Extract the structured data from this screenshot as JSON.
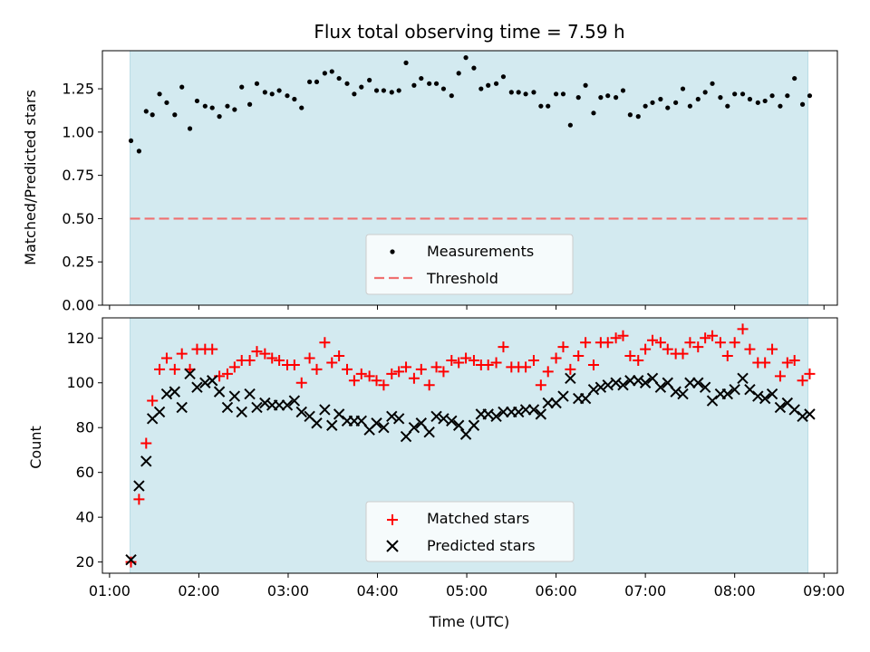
{
  "chart_data": [
    {
      "type": "scatter",
      "title": "Flux total observing time = 7.59 h",
      "ylabel": "Matched/Predicted stars",
      "xlabel": "",
      "xlim": [
        0.92,
        9.15
      ],
      "ylim": [
        0,
        1.47
      ],
      "yticks": [
        0,
        0.25,
        0.5,
        0.75,
        1.0,
        1.25
      ],
      "ytick_labels": [
        "0.00",
        "0.25",
        "0.50",
        "0.75",
        "1.00",
        "1.25"
      ],
      "observing_window": [
        1.23,
        8.82
      ],
      "threshold": 0.5,
      "legend": {
        "placement": "lower-center",
        "entries": [
          "Measurements",
          "Threshold"
        ]
      },
      "series": [
        {
          "name": "Measurements",
          "x": [
            1.24,
            1.33,
            1.41,
            1.48,
            1.56,
            1.64,
            1.73,
            1.81,
            1.9,
            1.98,
            2.07,
            2.15,
            2.23,
            2.32,
            2.4,
            2.48,
            2.57,
            2.65,
            2.74,
            2.82,
            2.9,
            2.99,
            3.07,
            3.15,
            3.24,
            3.32,
            3.41,
            3.49,
            3.57,
            3.66,
            3.74,
            3.82,
            3.91,
            3.99,
            4.07,
            4.16,
            4.24,
            4.32,
            4.41,
            4.49,
            4.58,
            4.66,
            4.74,
            4.83,
            4.91,
            4.99,
            5.08,
            5.16,
            5.24,
            5.33,
            5.41,
            5.5,
            5.58,
            5.66,
            5.75,
            5.83,
            5.91,
            6.0,
            6.08,
            6.16,
            6.25,
            6.33,
            6.42,
            6.5,
            6.58,
            6.67,
            6.75,
            6.83,
            6.92,
            7.0,
            7.08,
            7.17,
            7.25,
            7.34,
            7.42,
            7.5,
            7.59,
            7.67,
            7.75,
            7.84,
            7.92,
            8.0,
            8.09,
            8.17,
            8.26,
            8.34,
            8.42,
            8.51,
            8.59,
            8.67,
            8.76,
            8.84
          ],
          "y": [
            0.95,
            0.89,
            1.12,
            1.1,
            1.22,
            1.17,
            1.1,
            1.26,
            1.02,
            1.18,
            1.15,
            1.14,
            1.09,
            1.15,
            1.13,
            1.26,
            1.16,
            1.28,
            1.23,
            1.22,
            1.24,
            1.21,
            1.19,
            1.14,
            1.29,
            1.29,
            1.34,
            1.35,
            1.31,
            1.28,
            1.22,
            1.26,
            1.3,
            1.24,
            1.24,
            1.23,
            1.24,
            1.4,
            1.27,
            1.31,
            1.28,
            1.28,
            1.25,
            1.21,
            1.34,
            1.43,
            1.37,
            1.25,
            1.27,
            1.28,
            1.32,
            1.23,
            1.23,
            1.22,
            1.23,
            1.15,
            1.15,
            1.22,
            1.22,
            1.04,
            1.2,
            1.27,
            1.11,
            1.2,
            1.21,
            1.2,
            1.24,
            1.1,
            1.09,
            1.15,
            1.17,
            1.19,
            1.14,
            1.17,
            1.25,
            1.15,
            1.19,
            1.23,
            1.28,
            1.2,
            1.15,
            1.22,
            1.22,
            1.19,
            1.17,
            1.18,
            1.21,
            1.15,
            1.21,
            1.31,
            1.16,
            1.21
          ]
        }
      ]
    },
    {
      "type": "scatter",
      "title": "",
      "ylabel": "Count",
      "xlabel": "Time (UTC)",
      "xlim": [
        0.92,
        9.15
      ],
      "ylim": [
        15,
        129
      ],
      "yticks": [
        20,
        40,
        60,
        80,
        100,
        120
      ],
      "xticks": [
        1,
        2,
        3,
        4,
        5,
        6,
        7,
        8,
        9
      ],
      "xtick_labels": [
        "01:00",
        "02:00",
        "03:00",
        "04:00",
        "05:00",
        "06:00",
        "07:00",
        "08:00",
        "09:00"
      ],
      "observing_window": [
        1.23,
        8.82
      ],
      "legend": {
        "placement": "lower-center",
        "entries": [
          "Matched stars",
          "Predicted stars"
        ]
      },
      "series": [
        {
          "name": "Matched stars",
          "x": [
            1.24,
            1.33,
            1.41,
            1.48,
            1.56,
            1.64,
            1.73,
            1.81,
            1.9,
            1.98,
            2.07,
            2.15,
            2.23,
            2.32,
            2.4,
            2.48,
            2.57,
            2.65,
            2.74,
            2.82,
            2.9,
            2.99,
            3.07,
            3.15,
            3.24,
            3.32,
            3.41,
            3.49,
            3.57,
            3.66,
            3.74,
            3.82,
            3.91,
            3.99,
            4.07,
            4.16,
            4.24,
            4.32,
            4.41,
            4.49,
            4.58,
            4.66,
            4.74,
            4.83,
            4.91,
            4.99,
            5.08,
            5.16,
            5.24,
            5.33,
            5.41,
            5.5,
            5.58,
            5.66,
            5.75,
            5.83,
            5.91,
            6.0,
            6.08,
            6.16,
            6.25,
            6.33,
            6.42,
            6.5,
            6.58,
            6.67,
            6.75,
            6.83,
            6.92,
            7.0,
            7.08,
            7.17,
            7.25,
            7.34,
            7.42,
            7.5,
            7.59,
            7.67,
            7.75,
            7.84,
            7.92,
            8.0,
            8.09,
            8.17,
            8.26,
            8.34,
            8.42,
            8.51,
            8.59,
            8.67,
            8.76,
            8.84
          ],
          "y": [
            20,
            48,
            73,
            92,
            106,
            111,
            106,
            113,
            106,
            115,
            115,
            115,
            103,
            104,
            107,
            110,
            110,
            114,
            113,
            111,
            110,
            108,
            108,
            100,
            111,
            106,
            118,
            109,
            112,
            106,
            101,
            104,
            103,
            101,
            99,
            104,
            105,
            107,
            102,
            106,
            99,
            107,
            105,
            110,
            109,
            111,
            110,
            108,
            108,
            109,
            116,
            107,
            107,
            107,
            110,
            99,
            105,
            111,
            116,
            106,
            112,
            118,
            108,
            118,
            118,
            120,
            121,
            112,
            110,
            115,
            119,
            118,
            115,
            113,
            113,
            118,
            116,
            120,
            121,
            118,
            112,
            118,
            124,
            115,
            109,
            109,
            115,
            103,
            109,
            110,
            101,
            104
          ]
        },
        {
          "name": "Predicted stars",
          "x": [
            1.24,
            1.33,
            1.41,
            1.48,
            1.56,
            1.64,
            1.73,
            1.81,
            1.9,
            1.98,
            2.07,
            2.15,
            2.23,
            2.32,
            2.4,
            2.48,
            2.57,
            2.65,
            2.74,
            2.82,
            2.9,
            2.99,
            3.07,
            3.15,
            3.24,
            3.32,
            3.41,
            3.49,
            3.57,
            3.66,
            3.74,
            3.82,
            3.91,
            3.99,
            4.07,
            4.16,
            4.24,
            4.32,
            4.41,
            4.49,
            4.58,
            4.66,
            4.74,
            4.83,
            4.91,
            4.99,
            5.08,
            5.16,
            5.24,
            5.33,
            5.41,
            5.5,
            5.58,
            5.66,
            5.75,
            5.83,
            5.91,
            6.0,
            6.08,
            6.16,
            6.25,
            6.33,
            6.42,
            6.5,
            6.58,
            6.67,
            6.75,
            6.83,
            6.92,
            7.0,
            7.08,
            7.17,
            7.25,
            7.34,
            7.42,
            7.5,
            7.59,
            7.67,
            7.75,
            7.84,
            7.92,
            8.0,
            8.09,
            8.17,
            8.26,
            8.34,
            8.42,
            8.51,
            8.59,
            8.67,
            8.76,
            8.84
          ],
          "y": [
            21,
            54,
            65,
            84,
            87,
            95,
            96,
            89,
            104,
            98,
            100,
            101,
            96,
            89,
            94,
            87,
            95,
            89,
            91,
            90,
            90,
            90,
            92,
            87,
            85,
            82,
            88,
            81,
            86,
            83,
            83,
            83,
            79,
            82,
            80,
            85,
            84,
            76,
            80,
            82,
            78,
            85,
            84,
            83,
            81,
            77,
            81,
            86,
            86,
            85,
            87,
            87,
            87,
            88,
            88,
            86,
            91,
            91,
            94,
            102,
            93,
            93,
            97,
            98,
            99,
            100,
            99,
            101,
            101,
            100,
            102,
            98,
            100,
            96,
            95,
            100,
            100,
            98,
            92,
            95,
            95,
            97,
            102,
            97,
            94,
            93,
            95,
            89,
            91,
            88,
            85,
            86
          ]
        }
      ]
    }
  ]
}
